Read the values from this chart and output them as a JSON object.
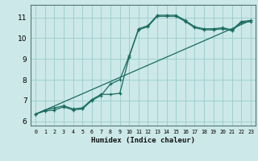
{
  "xlabel": "Humidex (Indice chaleur)",
  "ylabel": "",
  "bg_color": "#cce8e8",
  "grid_color": "#99cccc",
  "line_color": "#1a6b60",
  "xlim": [
    -0.5,
    23.5
  ],
  "ylim": [
    5.8,
    11.6
  ],
  "xticks": [
    0,
    1,
    2,
    3,
    4,
    5,
    6,
    7,
    8,
    9,
    10,
    11,
    12,
    13,
    14,
    15,
    16,
    17,
    18,
    19,
    20,
    21,
    22,
    23
  ],
  "yticks": [
    6,
    7,
    8,
    9,
    10,
    11
  ],
  "curve1_x": [
    0,
    1,
    2,
    3,
    4,
    5,
    6,
    7,
    8,
    9,
    10,
    11,
    12,
    13,
    14,
    15,
    16,
    17,
    18,
    19,
    20,
    21,
    22,
    23
  ],
  "curve1_y": [
    6.35,
    6.55,
    6.65,
    6.75,
    6.6,
    6.65,
    7.05,
    7.3,
    7.3,
    7.35,
    9.1,
    10.45,
    10.6,
    11.1,
    11.1,
    11.1,
    10.85,
    10.55,
    10.45,
    10.45,
    10.5,
    10.4,
    10.8,
    10.85
  ],
  "curve2_x": [
    0,
    1,
    2,
    3,
    4,
    5,
    6,
    7,
    8,
    9,
    10,
    11,
    12,
    13,
    14,
    15,
    16,
    17,
    18,
    19,
    20,
    21,
    22,
    23
  ],
  "curve2_y": [
    6.35,
    6.5,
    6.55,
    6.7,
    6.55,
    6.6,
    7.0,
    7.25,
    7.8,
    8.0,
    9.15,
    10.4,
    10.55,
    11.05,
    11.05,
    11.05,
    10.8,
    10.5,
    10.4,
    10.4,
    10.45,
    10.35,
    10.75,
    10.8
  ],
  "trend_x": [
    0,
    23
  ],
  "trend_y": [
    6.35,
    10.85
  ]
}
